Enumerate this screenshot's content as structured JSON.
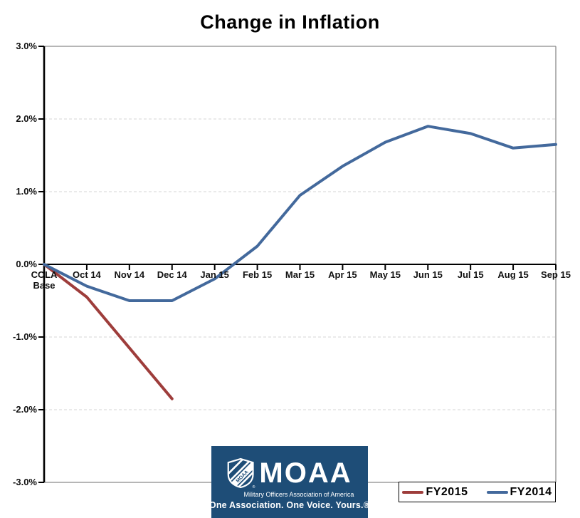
{
  "title": "Change in Inflation",
  "chart_data": {
    "type": "line",
    "categories": [
      "COLA Base",
      "Oct 14",
      "Nov 14",
      "Dec 14",
      "Jan 15",
      "Feb 15",
      "Mar 15",
      "Apr 15",
      "May 15",
      "Jun 15",
      "Jul 15",
      "Aug 15",
      "Sep 15"
    ],
    "series": [
      {
        "name": "FY2015",
        "color": "#9E3D3B",
        "values": [
          0,
          -0.45,
          -1.15,
          -1.85
        ]
      },
      {
        "name": "FY2014",
        "color": "#43699C",
        "values": [
          0,
          -0.3,
          -0.5,
          -0.5,
          -0.2,
          0.25,
          0.95,
          1.35,
          1.68,
          1.9,
          1.8,
          1.6,
          1.65
        ]
      }
    ],
    "ylim": [
      -3,
      3
    ],
    "yticks": [
      {
        "value": 3,
        "label": "3.0%"
      },
      {
        "value": 2,
        "label": "2.0%"
      },
      {
        "value": 1,
        "label": "1.0%"
      },
      {
        "value": 0,
        "label": "0.0%"
      },
      {
        "value": -1,
        "label": "-1.0%"
      },
      {
        "value": -2,
        "label": "-2.0%"
      },
      {
        "value": -3,
        "label": "-3.0%"
      }
    ],
    "grid": "horizontal dashed gridlines at 1% intervals",
    "legend_position": "bottom-right"
  },
  "logo": {
    "acronym": "MOAA",
    "tagline_small": "Military Officers Association of America",
    "tagline_bold": "One Association. One Voice. Yours.®",
    "background_color": "#1E4D77"
  }
}
